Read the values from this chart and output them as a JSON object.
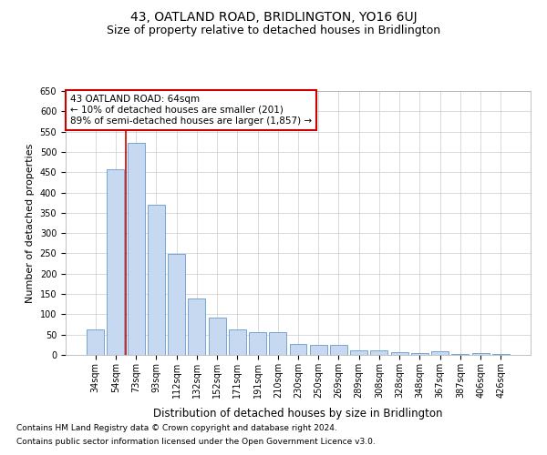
{
  "title": "43, OATLAND ROAD, BRIDLINGTON, YO16 6UJ",
  "subtitle": "Size of property relative to detached houses in Bridlington",
  "xlabel": "Distribution of detached houses by size in Bridlington",
  "ylabel": "Number of detached properties",
  "categories": [
    "34sqm",
    "54sqm",
    "73sqm",
    "93sqm",
    "112sqm",
    "132sqm",
    "152sqm",
    "171sqm",
    "191sqm",
    "210sqm",
    "230sqm",
    "250sqm",
    "269sqm",
    "289sqm",
    "308sqm",
    "328sqm",
    "348sqm",
    "367sqm",
    "387sqm",
    "406sqm",
    "426sqm"
  ],
  "values": [
    62,
    457,
    523,
    369,
    248,
    140,
    93,
    62,
    57,
    55,
    26,
    25,
    25,
    11,
    12,
    7,
    5,
    10,
    3,
    5,
    3
  ],
  "bar_color": "#c6d9f0",
  "bar_edge_color": "#6699cc",
  "vline_x": 1.5,
  "vline_color": "#cc0000",
  "annotation_line1": "43 OATLAND ROAD: 64sqm",
  "annotation_line2": "← 10% of detached houses are smaller (201)",
  "annotation_line3": "89% of semi-detached houses are larger (1,857) →",
  "annotation_box_color": "#ffffff",
  "annotation_box_edge_color": "#cc0000",
  "ylim": [
    0,
    650
  ],
  "yticks": [
    0,
    50,
    100,
    150,
    200,
    250,
    300,
    350,
    400,
    450,
    500,
    550,
    600,
    650
  ],
  "footer_line1": "Contains HM Land Registry data © Crown copyright and database right 2024.",
  "footer_line2": "Contains public sector information licensed under the Open Government Licence v3.0.",
  "bg_color": "#ffffff",
  "grid_color": "#cccccc",
  "title_fontsize": 10,
  "subtitle_fontsize": 9,
  "tick_fontsize": 7,
  "ylabel_fontsize": 8,
  "xlabel_fontsize": 8.5,
  "footer_fontsize": 6.5,
  "annotation_fontsize": 7.5
}
